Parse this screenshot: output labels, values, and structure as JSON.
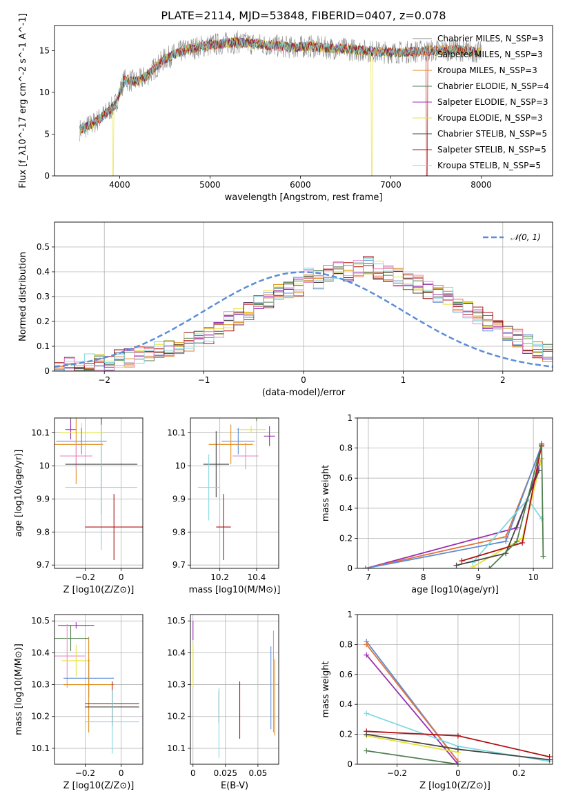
{
  "figure": {
    "title": "PLATE=2114, MJD=53848, FIBERID=0407, z=0.078"
  },
  "chart_data": [
    {
      "id": "spectrum",
      "type": "line",
      "xlabel": "wavelength [Angstrom, rest frame]",
      "ylabel": "Flux [f_λ10^-17 erg cm^-2 s^-1 A^-1]",
      "xlim": [
        3280,
        8790
      ],
      "ylim": [
        0,
        18
      ],
      "xticks": [
        4000,
        5000,
        6000,
        7000,
        8000
      ],
      "yticks": [
        0,
        5,
        10,
        15
      ],
      "grid": false,
      "legend_position": "right",
      "legend": [
        {
          "label": "Chabrier MILES, N_SSP=3",
          "color": "#8c8c8c"
        },
        {
          "label": "Salpeter MILES, N_SSP=3",
          "color": "#e4733a"
        },
        {
          "label": "Kroupa MILES, N_SSP=3",
          "color": "#e08a1a"
        },
        {
          "label": "Chabrier ELODIE, N_SSP=4",
          "color": "#4f7f4f"
        },
        {
          "label": "Salpeter ELODIE, N_SSP=3",
          "color": "#9a2fb3"
        },
        {
          "label": "Kroupa ELODIE, N_SSP=3",
          "color": "#e6e23a"
        },
        {
          "label": "Chabrier STELIB, N_SSP=5",
          "color": "#444444"
        },
        {
          "label": "Salpeter STELIB, N_SSP=5",
          "color": "#b01010"
        },
        {
          "label": "Kroupa STELIB, N_SSP=5",
          "color": "#7fd8e0"
        }
      ],
      "series_envelope": {
        "x": [
          3560,
          3700,
          3850,
          3950,
          4050,
          4200,
          4300,
          4500,
          4700,
          4900,
          5100,
          5300,
          5500,
          5700,
          5900,
          6100,
          6300,
          6500,
          6700,
          6900,
          7100,
          7300,
          7500,
          7700,
          7900,
          8000
        ],
        "y": [
          5.5,
          6.2,
          7.5,
          8.5,
          11.5,
          11.3,
          12.0,
          14.0,
          15.0,
          15.5,
          15.8,
          16.0,
          15.8,
          15.6,
          15.4,
          15.5,
          15.3,
          15.2,
          15.0,
          14.8,
          14.8,
          14.9,
          15.0,
          15.1,
          14.9,
          14.7
        ]
      }
    },
    {
      "id": "residuals",
      "type": "histogram",
      "xlabel": "(data-model)/error",
      "ylabel": "Normed distribution",
      "xlim": [
        -2.5,
        2.5
      ],
      "ylim": [
        0,
        0.6
      ],
      "xticks": [
        -2,
        -1,
        0,
        1,
        2
      ],
      "yticks": [
        0.0,
        0.1,
        0.2,
        0.3,
        0.4,
        0.5
      ],
      "grid": true,
      "legend_position": "top-right",
      "legend": [
        {
          "label": "𝒩(0, 1)",
          "color": "#5b8dd9",
          "style": "dashed"
        }
      ],
      "bin_edges_start": -2.5,
      "bin_width": 0.1,
      "histogram_reference": [
        0.015,
        0.02,
        0.025,
        0.03,
        0.035,
        0.04,
        0.05,
        0.055,
        0.06,
        0.07,
        0.08,
        0.09,
        0.1,
        0.12,
        0.14,
        0.15,
        0.17,
        0.2,
        0.22,
        0.24,
        0.27,
        0.29,
        0.31,
        0.33,
        0.34,
        0.38,
        0.37,
        0.39,
        0.41,
        0.4,
        0.42,
        0.43,
        0.41,
        0.4,
        0.38,
        0.36,
        0.35,
        0.33,
        0.31,
        0.3,
        0.27,
        0.25,
        0.22,
        0.2,
        0.17,
        0.15,
        0.13,
        0.11,
        0.09,
        0.07
      ]
    },
    {
      "id": "age_vs_Z",
      "type": "errorbar",
      "xlabel": "Z [log10(Z/Z⊙)]",
      "ylabel": "age  [log10(age/yr)]",
      "xlim": [
        -0.37,
        0.12
      ],
      "ylim": [
        9.69,
        10.145
      ],
      "xticks": [
        -0.2,
        0.0
      ],
      "yticks": [
        9.7,
        9.8,
        9.9,
        10.0,
        10.1
      ],
      "grid": true,
      "points": [
        {
          "x": -0.28,
          "xerr": 0.08,
          "y": 10.145,
          "yerr": 0.005,
          "color": "#4f7f4f"
        },
        {
          "x": -0.28,
          "xerr": 0.03,
          "y": 10.11,
          "yerr": 0.03,
          "color": "#9a2fb3"
        },
        {
          "x": -0.22,
          "xerr": 0.12,
          "y": 10.1,
          "yerr": 0.03,
          "color": "#e6e23a"
        },
        {
          "x": -0.22,
          "xerr": 0.14,
          "y": 10.075,
          "yerr": 0.04,
          "color": "#5b8dd9"
        },
        {
          "x": -0.25,
          "xerr": 0.15,
          "y": 10.065,
          "yerr": 0.12,
          "color": "#e08a1a"
        },
        {
          "x": -0.25,
          "xerr": 0.09,
          "y": 10.03,
          "yerr": 0.04,
          "color": "#e88bc4"
        },
        {
          "x": -0.11,
          "xerr": 0.2,
          "y": 10.005,
          "yerr": 0.15,
          "color": "#444444"
        },
        {
          "x": -0.11,
          "xerr": 0.2,
          "y": 9.935,
          "yerr": 0.19,
          "color": "#7fd8e0"
        },
        {
          "x": -0.04,
          "xerr": 0.16,
          "y": 9.815,
          "yerr": 0.1,
          "color": "#b01010"
        }
      ]
    },
    {
      "id": "age_vs_mass",
      "type": "errorbar",
      "xlabel": "mass [log10(M/M⊙)]",
      "ylabel": "",
      "xlim": [
        10.04,
        10.52
      ],
      "ylim": [
        9.69,
        10.145
      ],
      "xticks": [
        10.2,
        10.4
      ],
      "yticks": [
        9.7,
        9.8,
        9.9,
        10.0,
        10.1
      ],
      "grid": true,
      "points": [
        {
          "x": 10.4,
          "xerr": 0.06,
          "y": 10.145,
          "yerr": 0.01,
          "color": "#4f7f4f"
        },
        {
          "x": 10.37,
          "xerr": 0.08,
          "y": 10.11,
          "yerr": 0.01,
          "color": "#e6e23a"
        },
        {
          "x": 10.47,
          "xerr": 0.03,
          "y": 10.09,
          "yerr": 0.03,
          "color": "#9a2fb3"
        },
        {
          "x": 10.3,
          "xerr": 0.09,
          "y": 10.075,
          "yerr": 0.04,
          "color": "#5b8dd9"
        },
        {
          "x": 10.26,
          "xerr": 0.12,
          "y": 10.065,
          "yerr": 0.06,
          "color": "#e08a1a"
        },
        {
          "x": 10.34,
          "xerr": 0.07,
          "y": 10.03,
          "yerr": 0.04,
          "color": "#e88bc4"
        },
        {
          "x": 10.18,
          "xerr": 0.07,
          "y": 10.005,
          "yerr": 0.1,
          "color": "#444444"
        },
        {
          "x": 10.14,
          "xerr": 0.06,
          "y": 9.935,
          "yerr": 0.1,
          "color": "#7fd8e0"
        },
        {
          "x": 10.22,
          "xerr": 0.04,
          "y": 9.815,
          "yerr": 0.1,
          "color": "#b01010"
        }
      ]
    },
    {
      "id": "weight_vs_age",
      "type": "line",
      "xlabel": "age  [log10(age/yr)]",
      "ylabel": "mass weight",
      "xlim": [
        6.8,
        10.35
      ],
      "ylim": [
        0,
        1.0
      ],
      "xticks": [
        7,
        8,
        9,
        10
      ],
      "yticks": [
        0.0,
        0.2,
        0.4,
        0.6,
        0.8,
        1.0
      ],
      "grid": true,
      "series": [
        {
          "color": "#9a2fb3",
          "x": [
            6.95,
            9.7,
            10.15
          ],
          "y": [
            0.0,
            0.27,
            0.73
          ]
        },
        {
          "color": "#e4733a",
          "x": [
            6.95,
            9.5,
            10.15
          ],
          "y": [
            0.0,
            0.21,
            0.81
          ]
        },
        {
          "color": "#5b8dd9",
          "x": [
            6.95,
            9.5,
            10.15
          ],
          "y": [
            0.0,
            0.18,
            0.82
          ]
        },
        {
          "color": "#e6e23a",
          "x": [
            8.9,
            9.8,
            10.15
          ],
          "y": [
            0.01,
            0.2,
            0.73
          ]
        },
        {
          "color": "#7fd8e0",
          "x": [
            8.9,
            9.9,
            10.15
          ],
          "y": [
            0.04,
            0.46,
            0.33
          ]
        },
        {
          "color": "#444444",
          "x": [
            8.6,
            9.5,
            10.1
          ],
          "y": [
            0.02,
            0.1,
            0.65
          ]
        },
        {
          "color": "#b01010",
          "x": [
            8.7,
            9.8,
            10.15
          ],
          "y": [
            0.05,
            0.17,
            0.82
          ]
        },
        {
          "color": "#4f7f4f",
          "x": [
            9.2,
            9.7,
            10.15,
            10.18
          ],
          "y": [
            0.0,
            0.18,
            0.83,
            0.08
          ]
        }
      ]
    },
    {
      "id": "mass_vs_Z",
      "type": "errorbar",
      "xlabel": "Z [log10(Z/Z⊙)]",
      "ylabel": "mass [log10(M/M⊙)]",
      "xlim": [
        -0.37,
        0.12
      ],
      "ylim": [
        10.05,
        10.52
      ],
      "xticks": [
        -0.2,
        0.0
      ],
      "yticks": [
        10.1,
        10.2,
        10.3,
        10.4,
        10.5
      ],
      "grid": true,
      "points": [
        {
          "x": -0.25,
          "xerr": 0.1,
          "y": 10.486,
          "yerr": 0.01,
          "color": "#9a2fb3"
        },
        {
          "x": -0.28,
          "xerr": 0.1,
          "y": 10.445,
          "yerr": 0.04,
          "color": "#4f7f4f"
        },
        {
          "x": -0.3,
          "xerr": 0.1,
          "y": 10.39,
          "yerr": 0.1,
          "color": "#e88bc4"
        },
        {
          "x": -0.25,
          "xerr": 0.08,
          "y": 10.375,
          "yerr": 0.05,
          "color": "#e6e23a"
        },
        {
          "x": -0.18,
          "xerr": 0.14,
          "y": 10.32,
          "yerr": 0.06,
          "color": "#5b8dd9"
        },
        {
          "x": -0.18,
          "xerr": 0.14,
          "y": 10.3,
          "yerr": 0.15,
          "color": "#e08a1a"
        },
        {
          "x": -0.05,
          "xerr": 0.15,
          "y": 10.23,
          "yerr": 0.05,
          "color": "#444444"
        },
        {
          "x": -0.05,
          "xerr": 0.15,
          "y": 10.24,
          "yerr": 0.07,
          "color": "#b01010"
        },
        {
          "x": -0.05,
          "xerr": 0.15,
          "y": 10.183,
          "yerr": 0.1,
          "color": "#7fd8e0"
        }
      ]
    },
    {
      "id": "mass_vs_ebv",
      "type": "errorbar",
      "xlabel": "E(B-V)",
      "ylabel": "",
      "xlim": [
        -0.002,
        0.066
      ],
      "ylim": [
        10.05,
        10.52
      ],
      "xticks": [
        0.0,
        0.025,
        0.05
      ],
      "yticks": [
        10.1,
        10.2,
        10.3,
        10.4,
        10.5
      ],
      "grid": true,
      "points": [
        {
          "x": 0.0,
          "xerr": 0.0,
          "y": 10.47,
          "yerr": 0.03,
          "color": "#9a2fb3"
        },
        {
          "x": 0.0,
          "xerr": 0.0,
          "y": 10.36,
          "yerr": 0.07,
          "color": "#e6e23a"
        },
        {
          "x": 0.02,
          "xerr": 0.0,
          "y": 10.23,
          "yerr": 0.05,
          "color": "#444444"
        },
        {
          "x": 0.02,
          "xerr": 0.0,
          "y": 10.18,
          "yerr": 0.11,
          "color": "#7fd8e0"
        },
        {
          "x": 0.036,
          "xerr": 0.0,
          "y": 10.22,
          "yerr": 0.09,
          "color": "#b01010"
        },
        {
          "x": 0.06,
          "xerr": 0.0,
          "y": 10.29,
          "yerr": 0.13,
          "color": "#5b8dd9"
        },
        {
          "x": 0.062,
          "xerr": 0.0,
          "y": 10.31,
          "yerr": 0.16,
          "color": "#e88bc4"
        },
        {
          "x": 0.063,
          "xerr": 0.0,
          "y": 10.26,
          "yerr": 0.12,
          "color": "#e08a1a"
        }
      ]
    },
    {
      "id": "weight_vs_Z",
      "type": "line",
      "xlabel": "Z [log10(Z/Z⊙)]",
      "ylabel": "mass weight",
      "xlim": [
        -0.33,
        0.31
      ],
      "ylim": [
        0,
        1.0
      ],
      "xticks": [
        -0.2,
        0.0,
        0.2
      ],
      "yticks": [
        0.0,
        0.2,
        0.4,
        0.6,
        0.8,
        1.0
      ],
      "grid": true,
      "series": [
        {
          "color": "#5b8dd9",
          "x": [
            -0.3,
            0.0
          ],
          "y": [
            0.82,
            0.02
          ]
        },
        {
          "color": "#e4733a",
          "x": [
            -0.3,
            0.0
          ],
          "y": [
            0.8,
            0.02
          ]
        },
        {
          "color": "#9a2fb3",
          "x": [
            -0.3,
            0.0
          ],
          "y": [
            0.73,
            0.0
          ]
        },
        {
          "color": "#7fd8e0",
          "x": [
            -0.3,
            0.0,
            0.3
          ],
          "y": [
            0.34,
            0.12,
            0.02
          ]
        },
        {
          "color": "#e6e23a",
          "x": [
            -0.3,
            0.0
          ],
          "y": [
            0.19,
            0.08
          ]
        },
        {
          "color": "#b01010",
          "x": [
            -0.3,
            0.0,
            0.3
          ],
          "y": [
            0.22,
            0.19,
            0.05
          ]
        },
        {
          "color": "#444444",
          "x": [
            -0.3,
            0.0,
            0.3
          ],
          "y": [
            0.2,
            0.1,
            0.03
          ]
        },
        {
          "color": "#4f7f4f",
          "x": [
            -0.3,
            0.0
          ],
          "y": [
            0.09,
            0.0
          ]
        }
      ]
    }
  ]
}
